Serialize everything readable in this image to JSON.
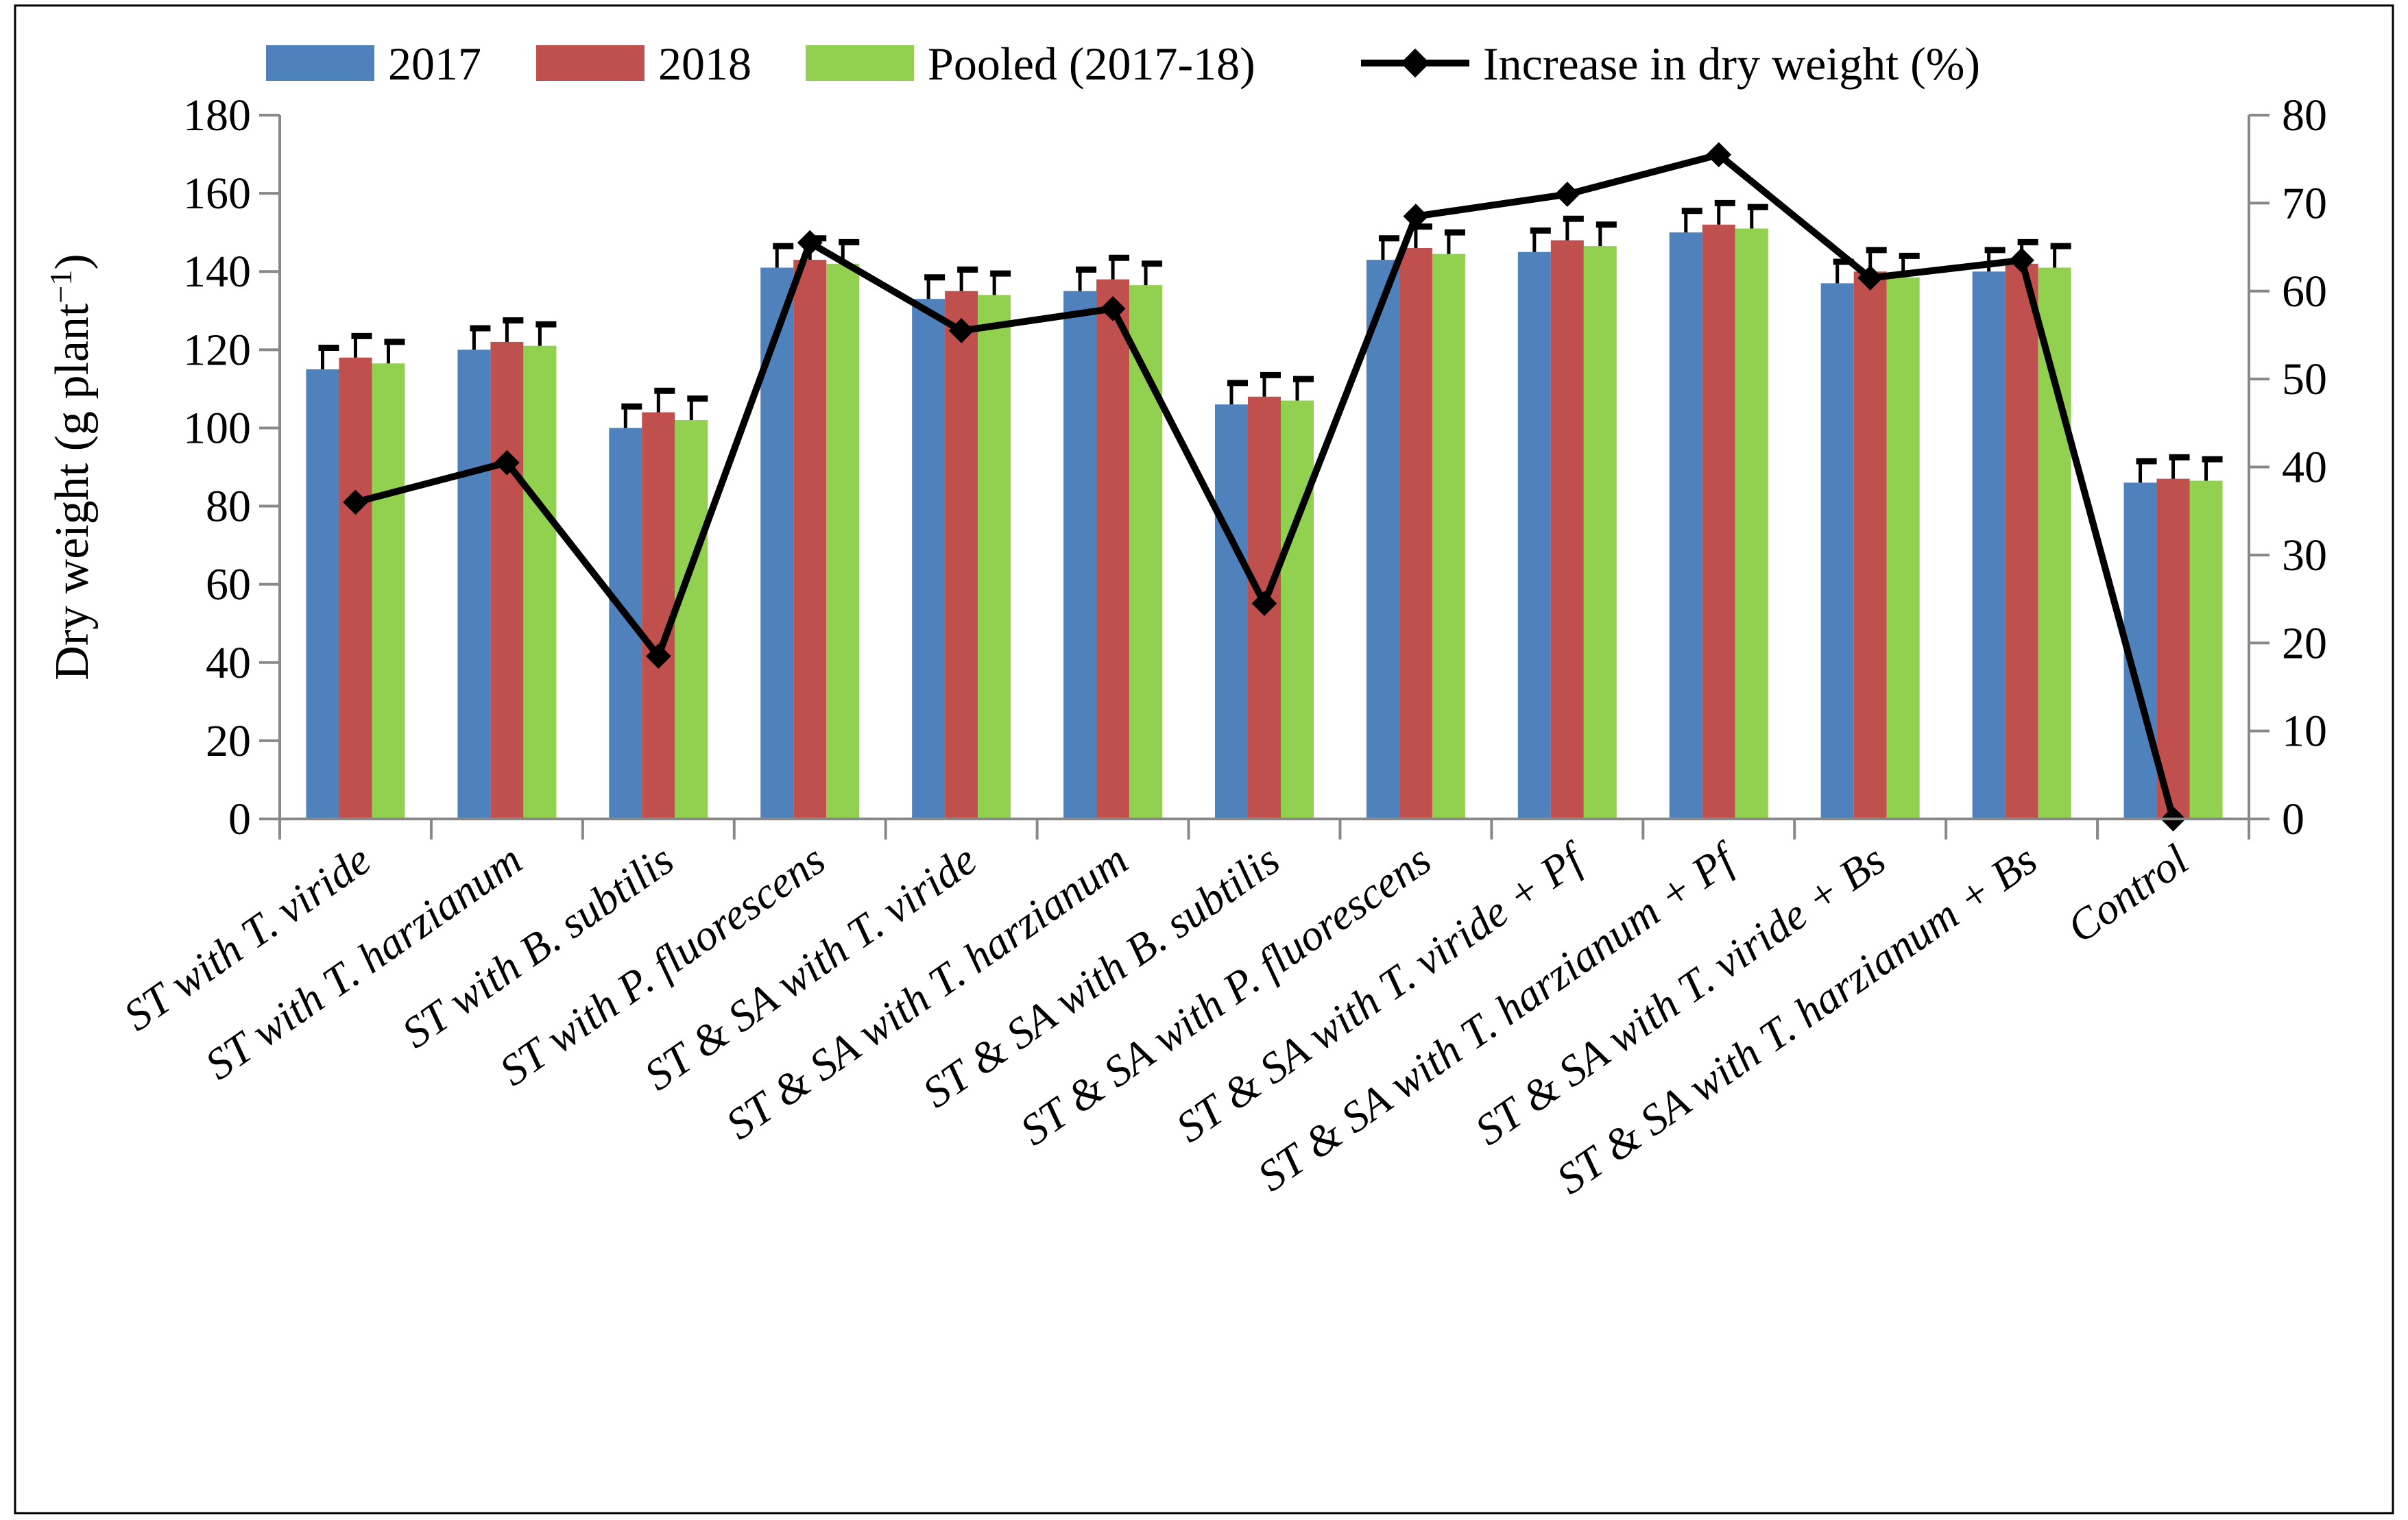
{
  "chart_data": {
    "type": "bar",
    "title": "",
    "ylabel": "Dry weight (g plant⁻¹)",
    "ylabel_main": "Dry weight (g plant",
    "ylabel_sup": "−1",
    "ylabel_close": ")",
    "xlabel": "",
    "ylim": [
      0,
      180
    ],
    "y_ticks": [
      "0",
      "20",
      "40",
      "60",
      "80",
      "100",
      "120",
      "140",
      "160",
      "180"
    ],
    "y2lim": [
      0,
      80
    ],
    "y2_ticks": [
      "0",
      "10",
      "20",
      "30",
      "40",
      "50",
      "60",
      "70",
      "80"
    ],
    "categories": [
      "ST with T. viride",
      "ST with T. harzianum",
      "ST with B. subtilis",
      "ST with P. fluorescens",
      "ST & SA with T. viride",
      "ST & SA with T. harzianum",
      "ST & SA with B. subtilis",
      "ST & SA with P. fluorescens",
      "ST & SA with T. viride + Pf",
      "ST & SA with T. harzianum + Pf",
      "ST & SA with T. viride + Bs",
      "ST & SA with T. harzianum + Bs",
      "Control"
    ],
    "series": [
      {
        "name": "2017",
        "color": "#4F81BD",
        "values": [
          115,
          120,
          100,
          141,
          133,
          135,
          106,
          143,
          145,
          150,
          137,
          140,
          86
        ],
        "errors": [
          5.5,
          5.5,
          5.5,
          5.5,
          5.5,
          5.5,
          5.5,
          5.5,
          5.5,
          5.5,
          5.5,
          5.5,
          5.5
        ]
      },
      {
        "name": "2018",
        "color": "#C0504D",
        "values": [
          118,
          122,
          104,
          143,
          135,
          138,
          108,
          146,
          148,
          152,
          140,
          142,
          87
        ],
        "errors": [
          5.5,
          5.5,
          5.5,
          5.5,
          5.5,
          5.5,
          5.5,
          5.5,
          5.5,
          5.5,
          5.5,
          5.5,
          5.5
        ]
      },
      {
        "name": "Pooled (2017-18)",
        "color": "#92D050",
        "values": [
          116.5,
          121,
          102,
          142,
          134,
          136.5,
          107,
          144.5,
          146.5,
          151,
          138.5,
          141,
          86.5
        ],
        "errors": [
          5.5,
          5.5,
          5.5,
          5.5,
          5.5,
          5.5,
          5.5,
          5.5,
          5.5,
          5.5,
          5.5,
          5.5,
          5.5
        ]
      }
    ],
    "line_series": {
      "name": "Increase in dry weight (%)",
      "color": "#000000",
      "axis": "secondary",
      "values": [
        36,
        40.5,
        18.5,
        65.5,
        55.5,
        58,
        24.5,
        68.5,
        71,
        75.5,
        61.5,
        63.5,
        0
      ]
    },
    "legend_position": "top"
  }
}
